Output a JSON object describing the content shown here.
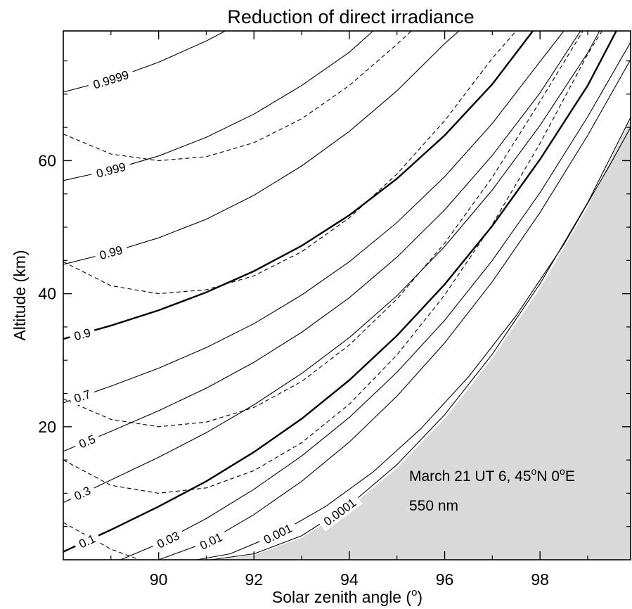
{
  "chart_data": {
    "type": "line",
    "title": "Reduction of direct irradiance",
    "xlabel_main": "Solar zenith angle (",
    "xlabel_sup": "o",
    "xlabel_end": ")",
    "ylabel": "Altitude (km)",
    "xlim": [
      88.0,
      99.9
    ],
    "ylim": [
      0,
      79.5
    ],
    "grid": false,
    "colors": {
      "shaded_region": "#d9d9d9",
      "lines": "#000000"
    },
    "x_ticks": [
      {
        "value": 90,
        "label": "90"
      },
      {
        "value": 92,
        "label": "92"
      },
      {
        "value": 94,
        "label": "94"
      },
      {
        "value": 96,
        "label": "96"
      },
      {
        "value": 98,
        "label": "98"
      }
    ],
    "y_ticks": [
      {
        "value": 20,
        "label": "20"
      },
      {
        "value": 40,
        "label": "40"
      },
      {
        "value": 60,
        "label": "60"
      }
    ],
    "annotations": {
      "line1_a": "March 21 UT 6, 45",
      "line1_sup1": "o",
      "line1_b": "N 0",
      "line1_sup2": "o",
      "line1_c": "E",
      "line2": "550 nm"
    },
    "shaded_boundary": [
      [
        91.2,
        0
      ],
      [
        92.0,
        0.7
      ],
      [
        93.0,
        3.3
      ],
      [
        94.0,
        7.8
      ],
      [
        95.0,
        13.8
      ],
      [
        96.0,
        21.2
      ],
      [
        97.0,
        30.3
      ],
      [
        98.0,
        40.8
      ],
      [
        99.0,
        53.0
      ],
      [
        99.9,
        66.2
      ]
    ],
    "series": [
      {
        "label": "0.9999",
        "style": "solid",
        "points": [
          [
            88.0,
            70.3
          ],
          [
            89.0,
            72.2
          ],
          [
            90.0,
            74.8
          ],
          [
            91.0,
            78.0
          ],
          [
            91.4,
            79.5
          ]
        ],
        "label_at": [
          89.0,
          72.2
        ]
      },
      {
        "label": "0.999",
        "style": "solid",
        "points": [
          [
            88.0,
            57.0
          ],
          [
            89.0,
            58.6
          ],
          [
            90.0,
            60.7
          ],
          [
            91.0,
            63.5
          ],
          [
            92.0,
            67.0
          ],
          [
            93.0,
            71.3
          ],
          [
            94.0,
            76.3
          ],
          [
            94.5,
            79.5
          ]
        ],
        "label_at": [
          89.0,
          58.6
        ]
      },
      {
        "label": "0.99",
        "style": "solid",
        "points": [
          [
            88.0,
            44.4
          ],
          [
            89.0,
            46.2
          ],
          [
            90.0,
            48.4
          ],
          [
            91.0,
            51.2
          ],
          [
            92.0,
            54.8
          ],
          [
            93.0,
            59.2
          ],
          [
            94.0,
            64.4
          ],
          [
            95.0,
            70.5
          ],
          [
            96.0,
            77.6
          ],
          [
            96.3,
            79.5
          ]
        ],
        "label_at": [
          89.0,
          46.2
        ]
      },
      {
        "label": "0.9",
        "style": "bold",
        "points": [
          [
            88.0,
            33.2
          ],
          [
            89.0,
            35.2
          ],
          [
            90.0,
            37.5
          ],
          [
            91.0,
            40.2
          ],
          [
            92.0,
            43.4
          ],
          [
            93.0,
            47.2
          ],
          [
            94.0,
            51.8
          ],
          [
            95.0,
            57.3
          ],
          [
            96.0,
            63.8
          ],
          [
            97.0,
            71.5
          ],
          [
            97.85,
            79.5
          ]
        ],
        "label_at": [
          88.4,
          33.9
        ]
      },
      {
        "label": "0.7",
        "style": "solid",
        "points": [
          [
            88.0,
            23.6
          ],
          [
            89.0,
            26.1
          ],
          [
            90.0,
            28.8
          ],
          [
            91.0,
            31.9
          ],
          [
            92.0,
            35.5
          ],
          [
            93.0,
            39.8
          ],
          [
            94.0,
            44.8
          ],
          [
            95.0,
            50.7
          ],
          [
            96.0,
            57.6
          ],
          [
            97.0,
            65.6
          ],
          [
            98.0,
            74.9
          ],
          [
            98.5,
            79.5
          ]
        ],
        "label_at": [
          88.4,
          24.6
        ]
      },
      {
        "label": "0.5",
        "style": "solid",
        "points": [
          [
            88.0,
            16.3
          ],
          [
            89.0,
            19.3
          ],
          [
            90.0,
            22.4
          ],
          [
            91.0,
            25.8
          ],
          [
            92.0,
            29.7
          ],
          [
            93.0,
            34.2
          ],
          [
            94.0,
            39.4
          ],
          [
            95.0,
            45.5
          ],
          [
            96.0,
            52.6
          ],
          [
            97.0,
            60.8
          ],
          [
            98.0,
            70.2
          ],
          [
            98.85,
            79.5
          ]
        ],
        "label_at": [
          88.5,
          17.8
        ]
      },
      {
        "label": "0.3",
        "style": "solid",
        "points": [
          [
            88.0,
            8.6
          ],
          [
            89.0,
            12.0
          ],
          [
            90.0,
            15.4
          ],
          [
            91.0,
            19.1
          ],
          [
            92.0,
            23.3
          ],
          [
            93.0,
            28.0
          ],
          [
            94.0,
            33.4
          ],
          [
            95.0,
            39.7
          ],
          [
            96.0,
            47.1
          ],
          [
            97.0,
            55.6
          ],
          [
            98.0,
            65.3
          ],
          [
            99.0,
            76.2
          ],
          [
            99.25,
            79.5
          ]
        ],
        "label_at": [
          88.4,
          10.0
        ]
      },
      {
        "label": "0.1",
        "style": "bold",
        "points": [
          [
            88.0,
            1.2
          ],
          [
            89.0,
            4.5
          ],
          [
            90.0,
            8.0
          ],
          [
            91.0,
            11.8
          ],
          [
            92.0,
            16.2
          ],
          [
            93.0,
            21.2
          ],
          [
            94.0,
            27.0
          ],
          [
            95.0,
            33.7
          ],
          [
            96.0,
            41.4
          ],
          [
            97.0,
            50.2
          ],
          [
            98.0,
            60.2
          ],
          [
            99.0,
            71.3
          ],
          [
            99.6,
            79.5
          ]
        ],
        "label_at": [
          88.5,
          2.8
        ]
      },
      {
        "label": "0.03",
        "style": "solid",
        "points": [
          [
            89.2,
            0
          ],
          [
            90.0,
            2.4
          ],
          [
            91.0,
            6.2
          ],
          [
            92.0,
            10.6
          ],
          [
            93.0,
            15.6
          ],
          [
            94.0,
            21.4
          ],
          [
            95.0,
            28.2
          ],
          [
            96.0,
            36.0
          ],
          [
            97.0,
            45.0
          ],
          [
            98.0,
            55.2
          ],
          [
            99.0,
            66.6
          ],
          [
            99.9,
            77.8
          ]
        ],
        "label_at": [
          90.2,
          3.0
        ]
      },
      {
        "label": "0.01",
        "style": "solid",
        "points": [
          [
            90.0,
            0
          ],
          [
            91.0,
            2.6
          ],
          [
            92.0,
            6.8
          ],
          [
            93.0,
            11.8
          ],
          [
            94.0,
            17.7
          ],
          [
            95.0,
            24.6
          ],
          [
            96.0,
            32.6
          ],
          [
            97.0,
            41.8
          ],
          [
            98.0,
            52.2
          ],
          [
            99.0,
            63.8
          ],
          [
            99.9,
            75.2
          ]
        ],
        "label_at": [
          91.1,
          2.8
        ]
      },
      {
        "label": "0.001",
        "style": "solid",
        "points": [
          [
            90.8,
            0
          ],
          [
            91.5,
            0.9
          ],
          [
            92.5,
            3.9
          ],
          [
            93.5,
            8.0
          ],
          [
            94.5,
            13.2
          ],
          [
            95.5,
            19.7
          ],
          [
            96.5,
            27.5
          ],
          [
            97.5,
            36.7
          ],
          [
            98.5,
            47.4
          ],
          [
            99.5,
            59.8
          ],
          [
            99.9,
            65.0
          ]
        ],
        "label_at": [
          92.5,
          3.9
        ]
      },
      {
        "label": "0.0001",
        "style": "solid",
        "points": [
          [
            91.1,
            0
          ],
          [
            92.0,
            0.9
          ],
          [
            93.0,
            3.6
          ],
          [
            94.0,
            8.2
          ],
          [
            95.0,
            14.3
          ],
          [
            96.0,
            21.8
          ],
          [
            97.0,
            30.9
          ],
          [
            98.0,
            41.5
          ],
          [
            99.0,
            53.7
          ],
          [
            99.9,
            66.5
          ]
        ],
        "label_at": [
          93.8,
          7.2
        ]
      }
    ],
    "dashed_series": [
      {
        "points": [
          [
            88.0,
            64.0
          ],
          [
            89.0,
            61.0
          ],
          [
            90.0,
            60.0
          ],
          [
            91.0,
            60.6
          ],
          [
            92.0,
            62.7
          ],
          [
            93.0,
            66.3
          ],
          [
            94.0,
            71.3
          ],
          [
            95.0,
            77.5
          ],
          [
            95.3,
            79.5
          ]
        ]
      },
      {
        "points": [
          [
            88.0,
            44.8
          ],
          [
            89.0,
            41.2
          ],
          [
            90.0,
            40.0
          ],
          [
            91.0,
            40.6
          ],
          [
            92.0,
            42.7
          ],
          [
            93.0,
            46.3
          ],
          [
            94.0,
            51.4
          ],
          [
            95.0,
            58.0
          ],
          [
            96.0,
            66.0
          ],
          [
            97.0,
            75.4
          ],
          [
            97.5,
            79.5
          ]
        ]
      },
      {
        "points": [
          [
            88.0,
            24.2
          ],
          [
            89.0,
            21.1
          ],
          [
            90.0,
            20.0
          ],
          [
            91.0,
            20.7
          ],
          [
            92.0,
            22.9
          ],
          [
            93.0,
            26.8
          ],
          [
            94.0,
            32.3
          ],
          [
            95.0,
            39.2
          ],
          [
            96.0,
            47.6
          ],
          [
            97.0,
            57.5
          ],
          [
            98.0,
            68.9
          ],
          [
            98.9,
            79.5
          ]
        ]
      },
      {
        "points": [
          [
            88.0,
            15.0
          ],
          [
            89.0,
            11.2
          ],
          [
            90.0,
            10.0
          ],
          [
            91.0,
            10.8
          ],
          [
            92.0,
            13.4
          ],
          [
            93.0,
            17.6
          ],
          [
            94.0,
            23.4
          ],
          [
            95.0,
            30.8
          ],
          [
            96.0,
            39.8
          ],
          [
            97.0,
            50.4
          ],
          [
            98.0,
            62.6
          ],
          [
            99.0,
            76.0
          ],
          [
            99.3,
            79.5
          ]
        ]
      },
      {
        "points": [
          [
            88.0,
            5.6
          ],
          [
            89.0,
            1.6
          ],
          [
            89.6,
            0
          ]
        ]
      }
    ]
  }
}
